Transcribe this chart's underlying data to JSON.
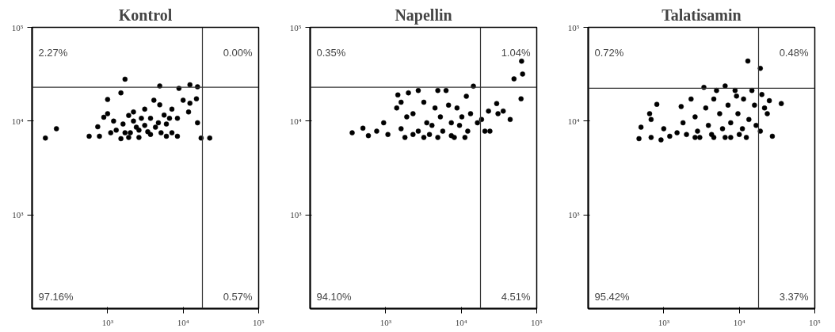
{
  "chart_data": [
    {
      "type": "scatter",
      "title": "Kontrol",
      "log": "xy",
      "grid": false,
      "marker": "circle",
      "xlim": [
        100,
        100000
      ],
      "ylim": [
        100,
        100000
      ],
      "xticks": [
        {
          "value": 1000,
          "label": "10³"
        },
        {
          "value": 10000,
          "label": "10⁴"
        },
        {
          "value": 100000,
          "label": "10⁵"
        }
      ],
      "yticks": [
        {
          "value": 1000,
          "label": "10³"
        },
        {
          "value": 10000,
          "label": "10⁴"
        },
        {
          "value": 100000,
          "label": "10⁵"
        }
      ],
      "ref_lines": [
        {
          "axis": "x",
          "value": 18000,
          "label": null
        },
        {
          "axis": "y",
          "value": 23000,
          "label": null
        }
      ],
      "annotations": [
        "2.27%",
        "0.00%",
        "97.16%",
        "0.57%"
      ],
      "series": [
        {
          "color": "#000000",
          "x": [
            150,
            210,
            570,
            1700,
            1500,
            1000,
            1000,
            890,
            740,
            780,
            1100,
            1300,
            1600,
            1900,
            2200,
            2600,
            3100,
            3700,
            4100,
            4900,
            5600,
            6000,
            7100,
            8400,
            7100,
            5100,
            3700,
            2600,
            1900,
            1500,
            2000,
            10000,
            12300,
            11800,
            15000,
            15500,
            17300,
            22500,
            15500,
            12300,
            8800,
            4900,
            4300,
            3100,
            6000,
            8400,
            2200,
            1200,
            1700,
            2400,
            3400,
            4700,
            6600,
            2800
          ],
          "values": [
            6600,
            8300,
            6900,
            28000,
            20000,
            17000,
            12000,
            11000,
            8700,
            6900,
            7500,
            8000,
            9300,
            11500,
            10000,
            8000,
            13400,
            10700,
            16700,
            14900,
            11600,
            9300,
            13400,
            10700,
            7500,
            7500,
            7200,
            6700,
            6700,
            6500,
            7500,
            16700,
            15500,
            12500,
            17300,
            9600,
            6600,
            6600,
            23200,
            24400,
            22300,
            23700,
            8600,
            9000,
            6900,
            6900,
            12500,
            10000,
            7500,
            8600,
            7700,
            9600,
            10700,
            10700
          ]
        }
      ]
    },
    {
      "type": "scatter",
      "title": "Napellin",
      "log": "xy",
      "grid": false,
      "marker": "circle",
      "xlim": [
        100,
        100000
      ],
      "ylim": [
        100,
        100000
      ],
      "xticks": [
        {
          "value": 1000,
          "label": "10³"
        },
        {
          "value": 10000,
          "label": "10⁴"
        },
        {
          "value": 100000,
          "label": "10⁵"
        }
      ],
      "yticks": [
        {
          "value": 1000,
          "label": "10³"
        },
        {
          "value": 10000,
          "label": "10⁴"
        },
        {
          "value": 100000,
          "label": "10⁵"
        }
      ],
      "ref_lines": [
        {
          "axis": "x",
          "value": 18000,
          "label": null
        },
        {
          "axis": "y",
          "value": 23000,
          "label": null
        }
      ],
      "annotations": [
        "0.35%",
        "1.04%",
        "94.10%",
        "4.51%"
      ],
      "series": [
        {
          "color": "#000000",
          "x": [
            360,
            500,
            590,
            760,
            940,
            1070,
            1400,
            1450,
            2000,
            1600,
            1900,
            2300,
            2700,
            3200,
            3500,
            3800,
            4500,
            4900,
            5300,
            5700,
            6300,
            6800,
            7400,
            8100,
            8800,
            10200,
            11700,
            12200,
            14500,
            13300,
            16400,
            18600,
            20600,
            24000,
            23000,
            29500,
            30700,
            36000,
            44500,
            50000,
            63000,
            65000,
            62000,
            2700,
            3200,
            4900,
            7400,
            11200,
            1800,
            2300,
            4100,
            9500,
            1600
          ],
          "values": [
            7500,
            8400,
            7000,
            7800,
            9600,
            7200,
            13800,
            19000,
            20000,
            8300,
            11100,
            7200,
            21200,
            15900,
            9600,
            7200,
            13800,
            21200,
            11100,
            7800,
            21200,
            14800,
            9600,
            6700,
            13800,
            11100,
            18400,
            7800,
            23600,
            12000,
            9600,
            10400,
            7800,
            7800,
            12800,
            15400,
            12000,
            12800,
            10400,
            28200,
            43600,
            31800,
            17300,
            7800,
            6700,
            6700,
            7000,
            6700,
            6700,
            12000,
            9000,
            9000,
            15900
          ]
        }
      ]
    },
    {
      "type": "scatter",
      "title": "Talatisamin",
      "log": "xy",
      "grid": false,
      "marker": "circle",
      "xlim": [
        100,
        100000
      ],
      "ylim": [
        100,
        100000
      ],
      "xticks": [
        {
          "value": 1000,
          "label": "10³"
        },
        {
          "value": 10000,
          "label": "10⁴"
        },
        {
          "value": 100000,
          "label": "10⁵"
        }
      ],
      "yticks": [
        {
          "value": 1000,
          "label": "10³"
        },
        {
          "value": 10000,
          "label": "10⁴"
        },
        {
          "value": 100000,
          "label": "10⁵"
        }
      ],
      "ref_lines": [
        {
          "axis": "x",
          "value": 18000,
          "label": null
        },
        {
          "axis": "y",
          "value": 22400,
          "label": null
        }
      ],
      "annotations": [
        "0.72%",
        "0.48%",
        "95.42%",
        "3.37%"
      ],
      "series": [
        {
          "color": "#000000",
          "x": [
            470,
            500,
            650,
            680,
            680,
            810,
            920,
            1000,
            1200,
            1500,
            1700,
            1800,
            2000,
            2300,
            2600,
            2800,
            3000,
            3400,
            3600,
            3900,
            4300,
            4600,
            5000,
            5500,
            6000,
            6500,
            6500,
            7100,
            7700,
            8800,
            9200,
            9600,
            10000,
            11400,
            12400,
            13000,
            13400,
            14700,
            15900,
            16700,
            19000,
            19900,
            19000,
            21600,
            23500,
            25000,
            27400,
            36000,
            4600,
            2600,
            7700,
            11000
          ],
          "values": [
            6500,
            8600,
            12000,
            10400,
            6700,
            15100,
            6300,
            8300,
            6900,
            7500,
            14300,
            9600,
            7200,
            17200,
            11100,
            7800,
            6700,
            22900,
            13800,
            9000,
            7200,
            17200,
            21200,
            12000,
            8300,
            23700,
            6700,
            14800,
            9600,
            21200,
            18500,
            12000,
            7200,
            17200,
            6700,
            43700,
            10400,
            21200,
            14800,
            9000,
            36500,
            19200,
            7800,
            13800,
            12000,
            16500,
            6900,
            15400,
            6700,
            6700,
            6700,
            8300
          ]
        }
      ]
    }
  ]
}
